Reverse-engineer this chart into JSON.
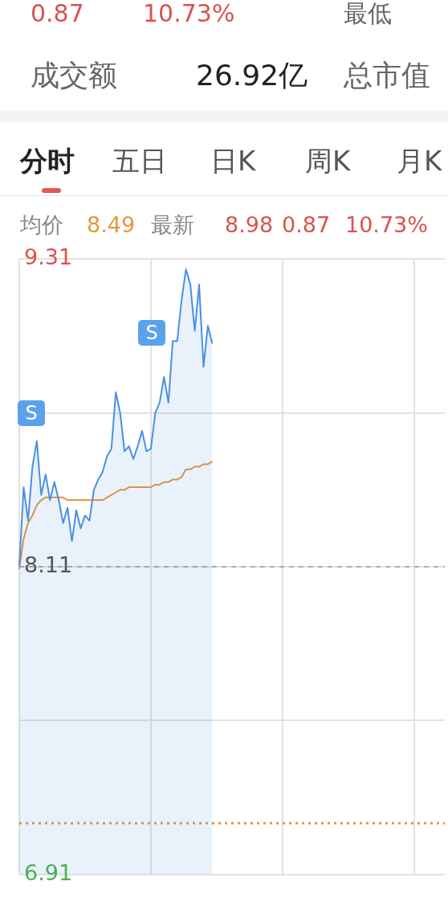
{
  "chart_data": {
    "type": "area",
    "annotations": [
      "0.87",
      "10.73%",
      "最低",
      "成交额",
      "26.92亿",
      "总市值",
      "分时",
      "五日",
      "日K",
      "周K",
      "月K",
      "均价",
      "8.49",
      "最新",
      "8.98",
      "0.87",
      "10.73%",
      "S",
      "S"
    ],
    "categories": [
      null,
      null,
      null,
      null,
      null,
      null,
      null,
      null,
      null,
      null,
      null,
      null,
      null,
      null,
      null,
      null,
      null,
      null,
      null,
      null,
      null,
      null,
      null,
      null,
      null,
      null,
      null,
      null,
      null,
      null,
      null,
      null,
      null,
      null,
      null,
      null,
      null,
      null,
      null,
      null,
      null,
      null,
      null,
      null,
      null,
      null,
      null,
      null,
      null,
      null,
      null,
      null,
      null,
      null,
      null,
      null,
      null,
      null,
      null,
      null,
      null,
      null,
      null,
      null,
      null,
      null,
      null,
      null,
      null,
      null,
      null,
      null,
      null,
      null,
      null,
      null,
      null,
      null,
      null,
      null,
      null,
      null,
      null,
      null,
      null,
      null,
      null,
      null,
      null,
      null,
      null,
      null,
      null,
      null,
      null,
      null,
      null,
      null
    ],
    "series": [
      {
        "color": "#4a90e2",
        "values": [
          8.11,
          8.42,
          8.29,
          8.5,
          8.6,
          8.39,
          8.47,
          8.37,
          8.44,
          8.37,
          8.28,
          8.34,
          8.21,
          8.33,
          8.26,
          8.31,
          8.29,
          8.41,
          8.45,
          8.48,
          8.54,
          8.57,
          8.79,
          8.71,
          8.56,
          8.58,
          8.53,
          8.58,
          8.64,
          8.56,
          8.57,
          8.71,
          8.75,
          8.85,
          8.75,
          8.99,
          8.99,
          9.15,
          9.27,
          9.21,
          9.03,
          9.21,
          8.89,
          9.05,
          8.98,
          null,
          null,
          null,
          null,
          null,
          null,
          null,
          null,
          null,
          null,
          null,
          null,
          null,
          null,
          null,
          null,
          null,
          null,
          null,
          null,
          null,
          null,
          null,
          null,
          null,
          null,
          null,
          null,
          null,
          null,
          null,
          null,
          null,
          null,
          null,
          null,
          null,
          null,
          null,
          null,
          null,
          null,
          null,
          null,
          null,
          null,
          null,
          null,
          null,
          null,
          null,
          null,
          null
        ]
      },
      {
        "type": "line",
        "color": "#e8963a",
        "values": [
          8.1,
          8.22,
          8.28,
          8.31,
          8.35,
          8.37,
          8.38,
          8.38,
          8.38,
          8.38,
          8.38,
          8.37,
          8.37,
          8.37,
          8.37,
          8.37,
          8.37,
          8.37,
          8.37,
          8.37,
          8.38,
          8.39,
          8.4,
          8.41,
          8.41,
          8.42,
          8.42,
          8.42,
          8.42,
          8.42,
          8.42,
          8.43,
          8.43,
          8.44,
          8.44,
          8.45,
          8.45,
          8.46,
          8.49,
          8.49,
          8.5,
          8.5,
          8.51,
          8.51,
          8.52,
          null,
          null,
          null,
          null,
          null,
          null,
          null,
          null,
          null,
          null,
          null,
          null,
          null,
          null,
          null,
          null,
          null,
          null,
          null,
          null,
          null,
          null,
          null,
          null,
          null,
          null,
          null,
          null,
          null,
          null,
          null,
          null,
          null,
          null,
          null,
          null,
          null,
          null,
          null,
          null,
          null,
          null,
          null,
          null,
          null,
          null,
          null,
          null,
          null,
          null,
          null,
          null,
          null
        ]
      }
    ],
    "ylim": [
      6.91,
      9.31
    ],
    "yticks": [
      6.91,
      {
        "value": 7.51,
        "label": null
      },
      8.11,
      {
        "value": 8.71,
        "label": null
      },
      9.31
    ],
    "tick_labels": "y",
    "grid": true,
    "legend": false,
    "ref_lines": [
      {
        "axis": "y",
        "value": 8.11,
        "label": null,
        "color": "#999999",
        "line_style": "dashed"
      },
      {
        "axis": "y",
        "value": 7.11,
        "label": null,
        "color": "#e8963a",
        "line_style": "dotted"
      }
    ]
  }
}
